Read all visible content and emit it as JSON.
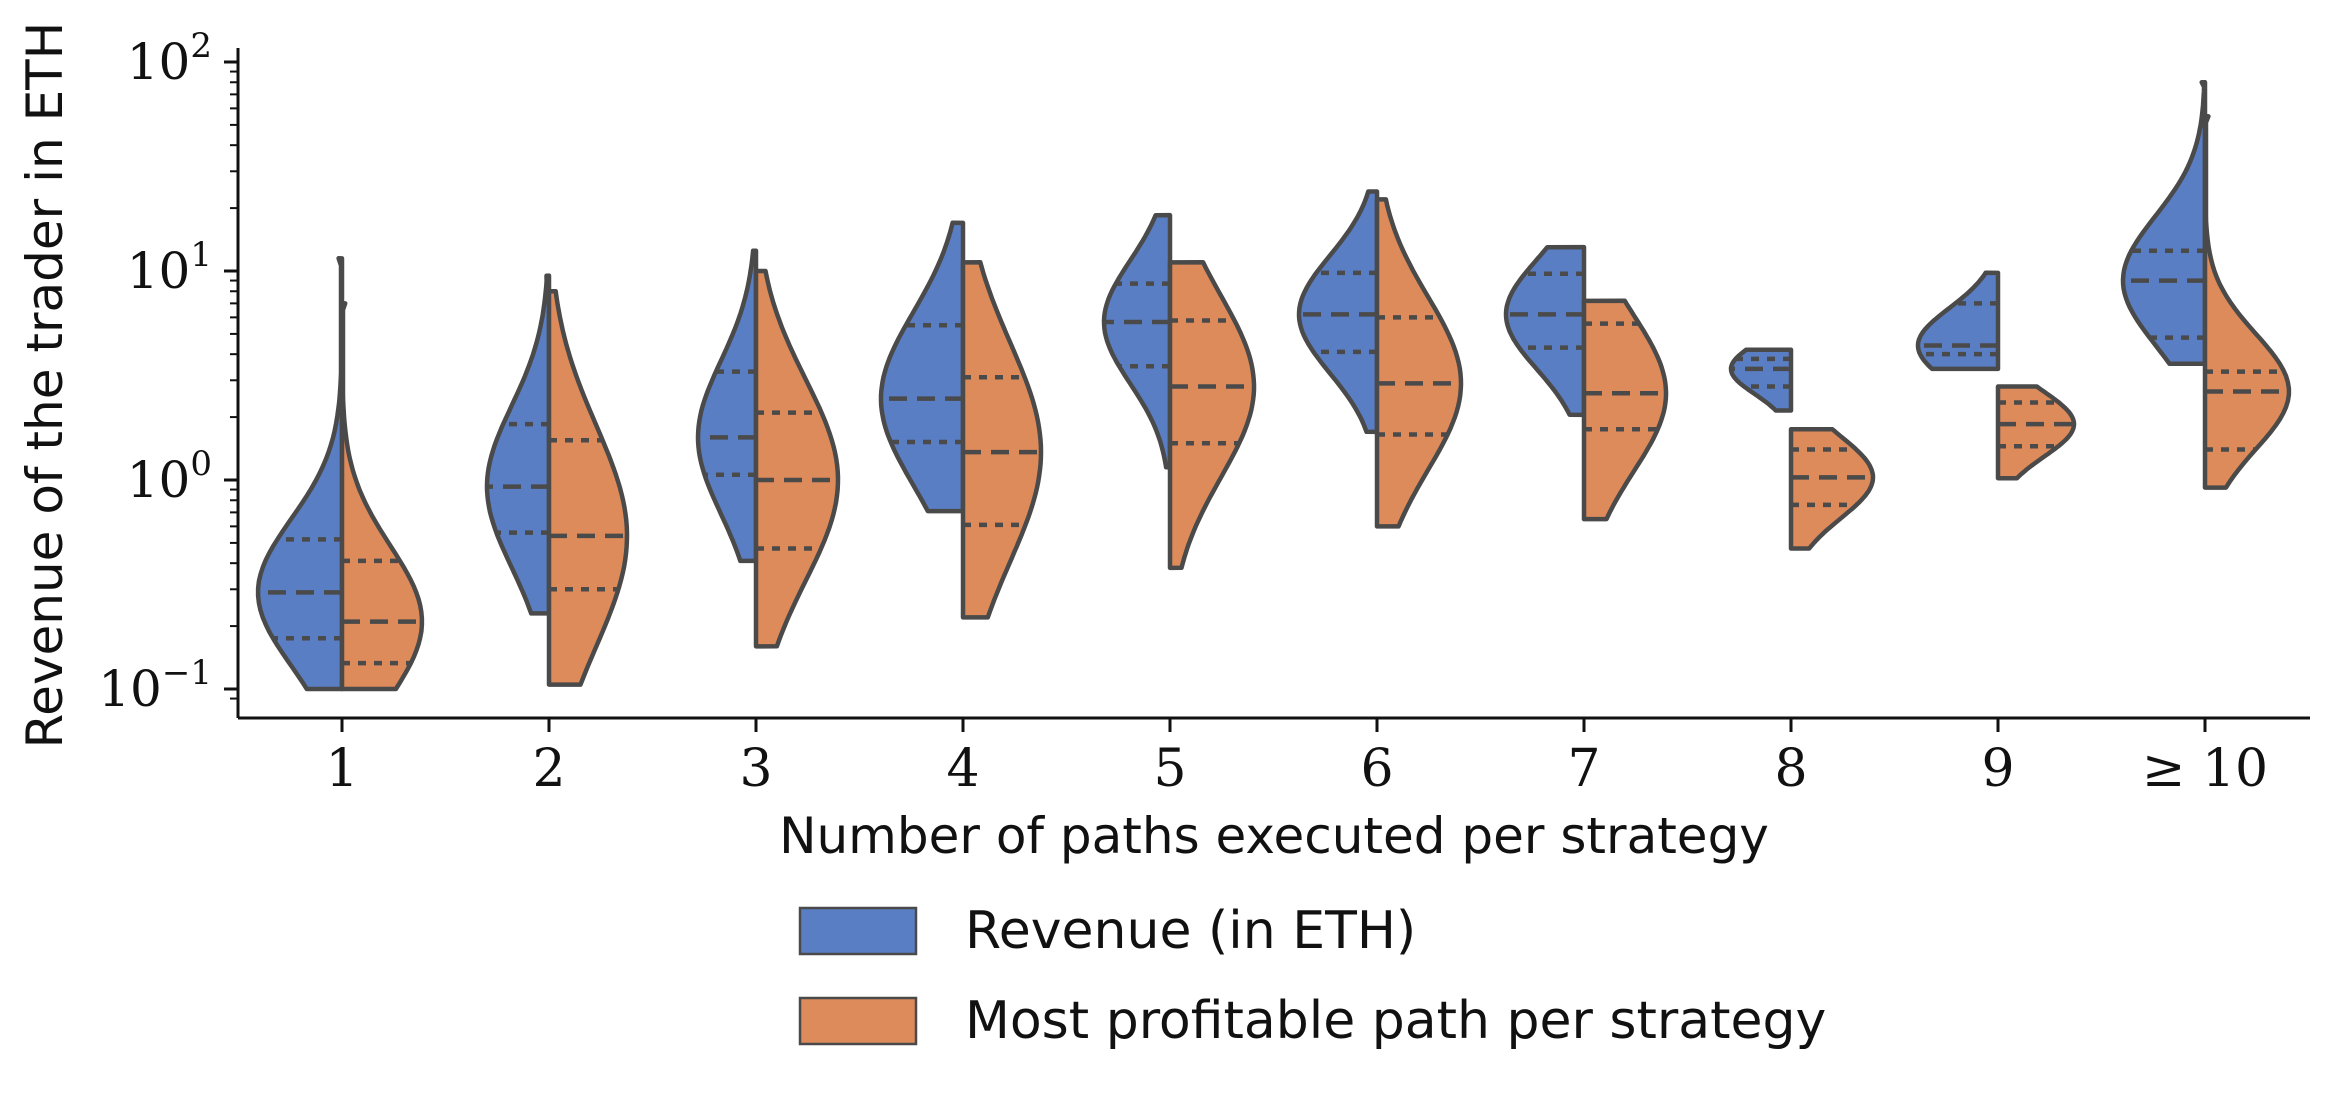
{
  "chart_data": {
    "type": "violin",
    "title": "",
    "xlabel": "Number of paths executed per strategy",
    "ylabel": "Revenue of the trader in ETH",
    "yscale": "log",
    "ylim": [
      0.08,
      120
    ],
    "yticks": [
      {
        "value": 0.1,
        "base": "10",
        "exp": "−1"
      },
      {
        "value": 1,
        "base": "10",
        "exp": "0"
      },
      {
        "value": 10,
        "base": "10",
        "exp": "1"
      },
      {
        "value": 100,
        "base": "10",
        "exp": "2"
      }
    ],
    "categories": [
      "1",
      "2",
      "3",
      "4",
      "5",
      "6",
      "7",
      "8",
      "9",
      "≥ 10"
    ],
    "grid": false,
    "legend_position": "bottom-center",
    "inner": "quartile",
    "series": [
      {
        "name": "Revenue (in ETH)",
        "color": "#5a7ec4",
        "side": "left",
        "violins": [
          {
            "min": 0.1,
            "max": 11.5,
            "q1": 0.175,
            "median": 0.29,
            "q3": 0.52,
            "width": 0.42
          },
          {
            "min": 0.23,
            "max": 9.5,
            "q1": 0.56,
            "median": 0.93,
            "q3": 1.85,
            "width": 0.31
          },
          {
            "min": 0.41,
            "max": 12.5,
            "q1": 1.06,
            "median": 1.6,
            "q3": 3.3,
            "width": 0.29
          },
          {
            "min": 0.71,
            "max": 17,
            "q1": 1.52,
            "median": 2.45,
            "q3": 5.5,
            "width": 0.41
          },
          {
            "min": 1.15,
            "max": 18.5,
            "q1": 3.5,
            "median": 5.7,
            "q3": 8.7,
            "width": 0.33
          },
          {
            "min": 1.7,
            "max": 24,
            "q1": 4.1,
            "median": 6.2,
            "q3": 9.8,
            "width": 0.39
          },
          {
            "min": 2.05,
            "max": 13,
            "q1": 4.3,
            "median": 6.2,
            "q3": 9.7,
            "width": 0.39
          },
          {
            "min": 2.15,
            "max": 4.2,
            "q1": 2.8,
            "median": 3.4,
            "q3": 3.8,
            "width": 0.3
          },
          {
            "min": 3.4,
            "max": 9.8,
            "q1": 4.0,
            "median": 4.4,
            "q3": 7.0,
            "width": 0.4
          },
          {
            "min": 3.6,
            "max": 80,
            "q1": 4.8,
            "median": 9.0,
            "q3": 12.5,
            "width": 0.41
          }
        ]
      },
      {
        "name": "Most profitable path per strategy",
        "color": "#dd8b5a",
        "side": "right",
        "violins": [
          {
            "min": 0.1,
            "max": 7.0,
            "q1": 0.133,
            "median": 0.21,
            "q3": 0.41,
            "width": 0.4
          },
          {
            "min": 0.105,
            "max": 8.0,
            "q1": 0.3,
            "median": 0.54,
            "q3": 1.55,
            "width": 0.39
          },
          {
            "min": 0.16,
            "max": 10.0,
            "q1": 0.47,
            "median": 1.0,
            "q3": 2.1,
            "width": 0.41
          },
          {
            "min": 0.22,
            "max": 11.0,
            "q1": 0.61,
            "median": 1.36,
            "q3": 3.1,
            "width": 0.39
          },
          {
            "min": 0.38,
            "max": 11.0,
            "q1": 1.5,
            "median": 2.8,
            "q3": 5.8,
            "width": 0.42
          },
          {
            "min": 0.6,
            "max": 22,
            "q1": 1.65,
            "median": 2.9,
            "q3": 6.0,
            "width": 0.42
          },
          {
            "min": 0.65,
            "max": 7.2,
            "q1": 1.75,
            "median": 2.6,
            "q3": 5.6,
            "width": 0.41
          },
          {
            "min": 0.47,
            "max": 1.75,
            "q1": 0.76,
            "median": 1.03,
            "q3": 1.4,
            "width": 0.41
          },
          {
            "min": 1.02,
            "max": 2.8,
            "q1": 1.45,
            "median": 1.85,
            "q3": 2.35,
            "width": 0.38
          },
          {
            "min": 0.92,
            "max": 55,
            "q1": 1.4,
            "median": 2.65,
            "q3": 3.3,
            "width": 0.42
          }
        ]
      }
    ]
  }
}
